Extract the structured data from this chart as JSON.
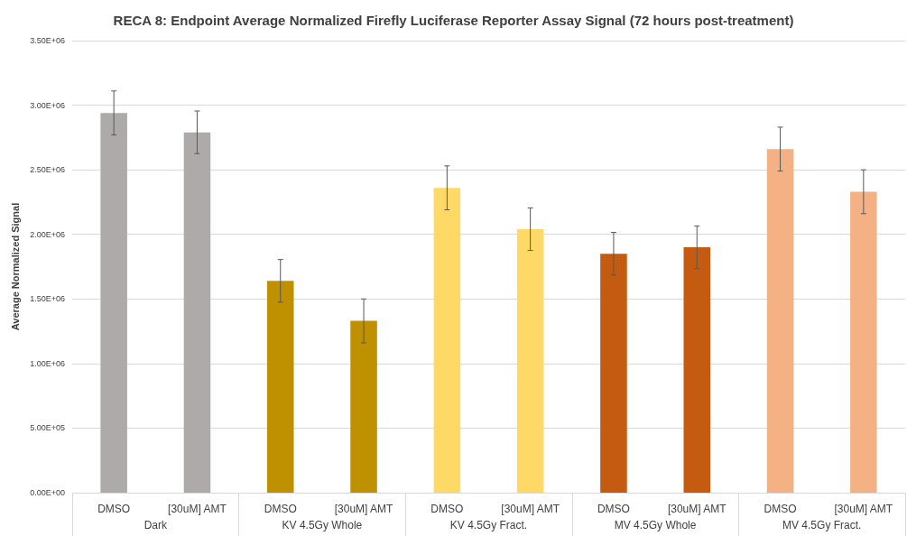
{
  "chart_data": {
    "type": "bar",
    "title": "RECA 8: Endpoint Average Normalized Firefly Luciferase Reporter Assay Signal (72 hours post-treatment)",
    "ylabel": "Average Normalized Signal",
    "categories": [
      "DMSO",
      "[30uM] AMT",
      "DMSO",
      "[30uM] AMT",
      "DMSO",
      "[30uM] AMT",
      "DMSO",
      "[30uM] AMT",
      "DMSO",
      "[30uM] AMT"
    ],
    "values": [
      2940000,
      2790000,
      1640000,
      1330000,
      2360000,
      2040000,
      1850000,
      1900000,
      2660000,
      2330000
    ],
    "errors": [
      170000,
      165000,
      165000,
      170000,
      170000,
      165000,
      165000,
      165000,
      170000,
      170000
    ],
    "colors": [
      "#aeaaaa",
      "#aeaaaa",
      "#bf9000",
      "#bf9000",
      "#ffd966",
      "#ffd966",
      "#c55a11",
      "#c55a11",
      "#f4b183",
      "#f4b183"
    ],
    "annotations": [
      "Dark",
      "KV 4.5Gy Whole",
      "KV 4.5Gy Fract.",
      "MV 4.5Gy Whole",
      "MV 4.5Gy Fract."
    ],
    "ylim": [
      0,
      3500000
    ],
    "yticks": [
      {
        "value": 0,
        "label": "0.00E+00"
      },
      {
        "value": 500000,
        "label": "5.00E+05"
      },
      {
        "value": 1000000,
        "label": "1.00E+06"
      },
      {
        "value": 1500000,
        "label": "1.50E+06"
      },
      {
        "value": 2000000,
        "label": "2.00E+06"
      },
      {
        "value": 2500000,
        "label": "2.50E+06"
      },
      {
        "value": 3000000,
        "label": "3.00E+06"
      },
      {
        "value": 3500000,
        "label": "3.50E+06"
      }
    ],
    "grid": "y"
  }
}
